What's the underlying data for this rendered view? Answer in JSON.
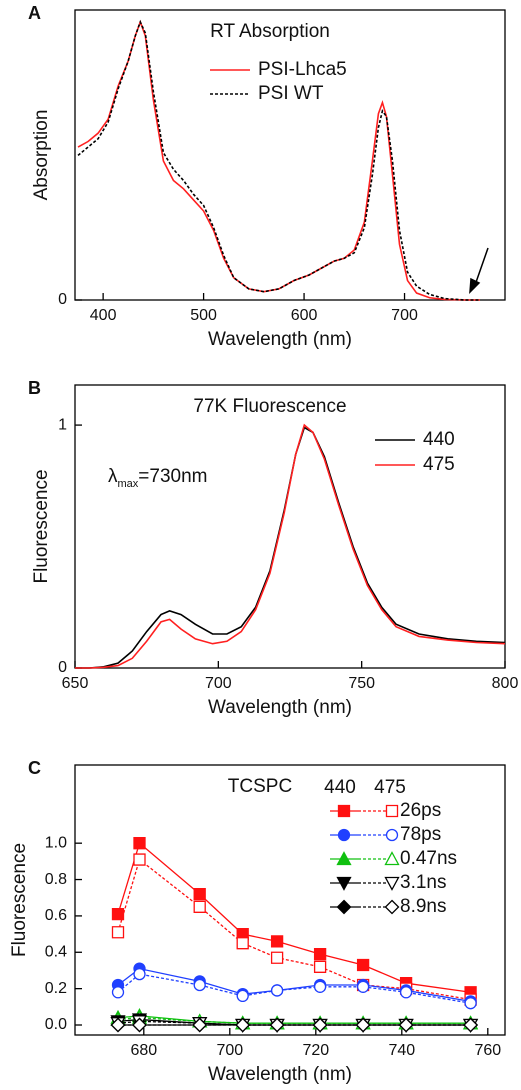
{
  "chart_data": [
    {
      "type": "line",
      "panel_label": "A",
      "title": "RT Absorption",
      "x_label": "Wavelength (nm)",
      "y_label": "Absorption",
      "xlim": [
        372,
        800
      ],
      "ylim": [
        0,
        1.043
      ],
      "xticks": [
        400,
        500,
        600,
        700
      ],
      "yticks": [
        0
      ],
      "legend": "top-center",
      "x": [
        375,
        385,
        395,
        405,
        415,
        425,
        432,
        437,
        442,
        450,
        460,
        470,
        480,
        490,
        500,
        510,
        520,
        530,
        545,
        560,
        575,
        590,
        605,
        620,
        630,
        640,
        650,
        660,
        668,
        674,
        678,
        682,
        688,
        695,
        703,
        712,
        725,
        740,
        760,
        775
      ],
      "series": [
        {
          "name": "PSI-Lhca5",
          "color": "#ff2020",
          "dash": false,
          "values": [
            0.55,
            0.57,
            0.6,
            0.65,
            0.77,
            0.86,
            0.95,
            1.0,
            0.95,
            0.72,
            0.5,
            0.43,
            0.4,
            0.36,
            0.32,
            0.25,
            0.15,
            0.08,
            0.04,
            0.03,
            0.04,
            0.07,
            0.09,
            0.12,
            0.14,
            0.15,
            0.18,
            0.28,
            0.5,
            0.67,
            0.71,
            0.66,
            0.45,
            0.2,
            0.07,
            0.025,
            0.008,
            0.002,
            0,
            0
          ]
        },
        {
          "name": "PSI WT",
          "color": "#000000",
          "dash": true,
          "values": [
            0.52,
            0.55,
            0.58,
            0.64,
            0.76,
            0.86,
            0.95,
            1.0,
            0.96,
            0.75,
            0.53,
            0.47,
            0.43,
            0.38,
            0.34,
            0.26,
            0.16,
            0.08,
            0.04,
            0.03,
            0.04,
            0.07,
            0.09,
            0.12,
            0.14,
            0.15,
            0.17,
            0.26,
            0.45,
            0.62,
            0.68,
            0.66,
            0.5,
            0.25,
            0.1,
            0.05,
            0.02,
            0.005,
            0,
            0
          ]
        }
      ]
    },
    {
      "type": "line",
      "panel_label": "B",
      "title": "77K Fluorescence",
      "x_label": "Wavelength (nm)",
      "y_label": "Fluorescence",
      "xlim": [
        650,
        800
      ],
      "ylim": [
        0,
        1.165
      ],
      "xticks": [
        650,
        700,
        750,
        800
      ],
      "yticks": [
        0,
        1
      ],
      "legend": "top-right",
      "annotation": {
        "symbol": "λ",
        "subscript": "max",
        "text": "=730nm"
      },
      "x": [
        650,
        655,
        660,
        665,
        670,
        675,
        680,
        683,
        687,
        692,
        698,
        703,
        708,
        713,
        718,
        723,
        727,
        730,
        733,
        737,
        742,
        747,
        752,
        757,
        762,
        770,
        780,
        790,
        800
      ],
      "series": [
        {
          "name": "440",
          "color": "#000000",
          "dash": false,
          "values": [
            0,
            0,
            0.005,
            0.02,
            0.07,
            0.15,
            0.22,
            0.235,
            0.22,
            0.18,
            0.14,
            0.14,
            0.17,
            0.25,
            0.4,
            0.65,
            0.88,
            0.99,
            0.97,
            0.87,
            0.68,
            0.5,
            0.35,
            0.25,
            0.18,
            0.14,
            0.12,
            0.11,
            0.105
          ]
        },
        {
          "name": "475",
          "color": "#ff2020",
          "dash": false,
          "values": [
            0,
            0,
            0.003,
            0.01,
            0.04,
            0.11,
            0.19,
            0.2,
            0.16,
            0.12,
            0.1,
            0.11,
            0.15,
            0.24,
            0.39,
            0.64,
            0.88,
            1.0,
            0.97,
            0.86,
            0.67,
            0.49,
            0.34,
            0.24,
            0.17,
            0.13,
            0.115,
            0.105,
            0.1
          ]
        }
      ]
    },
    {
      "type": "marker-line",
      "panel_label": "C",
      "title": "TCSPC",
      "x_label": "Wavelength (nm)",
      "y_label": "Fluorescence",
      "xlim": [
        664,
        764
      ],
      "ylim": [
        -0.055,
        1.43
      ],
      "xticks": [
        680,
        700,
        720,
        740,
        760
      ],
      "yticks": [
        {
          "value": 0,
          "label": "0.0"
        },
        0.2,
        0.4,
        0.6,
        0.8,
        {
          "value": 1,
          "label": "1.0"
        }
      ],
      "legend": "top-right",
      "legend_columns": [
        "440",
        "475"
      ],
      "x": [
        674,
        679,
        693,
        703,
        711,
        721,
        731,
        741,
        756
      ],
      "series": [
        {
          "name": "26ps",
          "color": "#ff1010",
          "marker": "square",
          "values": [
            [
              0.61,
              1.0,
              0.72,
              0.5,
              0.46,
              0.39,
              0.33,
              0.23,
              0.18
            ],
            [
              0.51,
              0.91,
              0.65,
              0.45,
              0.37,
              0.32,
              0.22,
              0.2,
              0.14
            ]
          ]
        },
        {
          "name": "78ps",
          "color": "#2040ff",
          "marker": "circle",
          "values": [
            [
              0.22,
              0.31,
              0.24,
              0.17,
              0.19,
              0.22,
              0.22,
              0.19,
              0.13
            ],
            [
              0.18,
              0.28,
              0.22,
              0.16,
              0.19,
              0.21,
              0.21,
              0.18,
              0.12
            ]
          ]
        },
        {
          "name": "0.47ns",
          "color": "#10c010",
          "marker": "triangle-up",
          "values": [
            [
              0.04,
              0.05,
              0.02,
              0.01,
              0.01,
              0.01,
              0.01,
              0.01,
              0.01
            ],
            [
              0.03,
              0.04,
              0.02,
              0.01,
              0.01,
              0.01,
              0.01,
              0.01,
              0.01
            ]
          ]
        },
        {
          "name": "3.1ns",
          "color": "#000000",
          "marker": "triangle-down",
          "values": [
            [
              0.02,
              0.03,
              0.01,
              0,
              0,
              0,
              0,
              0,
              0
            ],
            [
              0.01,
              0.02,
              0.01,
              0,
              0,
              0,
              0,
              0,
              0
            ]
          ]
        },
        {
          "name": "8.9ns",
          "color": "#000000",
          "marker": "diamond",
          "values": [
            [
              0,
              0,
              0,
              0,
              0,
              0,
              0,
              0,
              0
            ],
            [
              0,
              0,
              0,
              0,
              0,
              0,
              0,
              0,
              0
            ]
          ]
        }
      ]
    }
  ]
}
